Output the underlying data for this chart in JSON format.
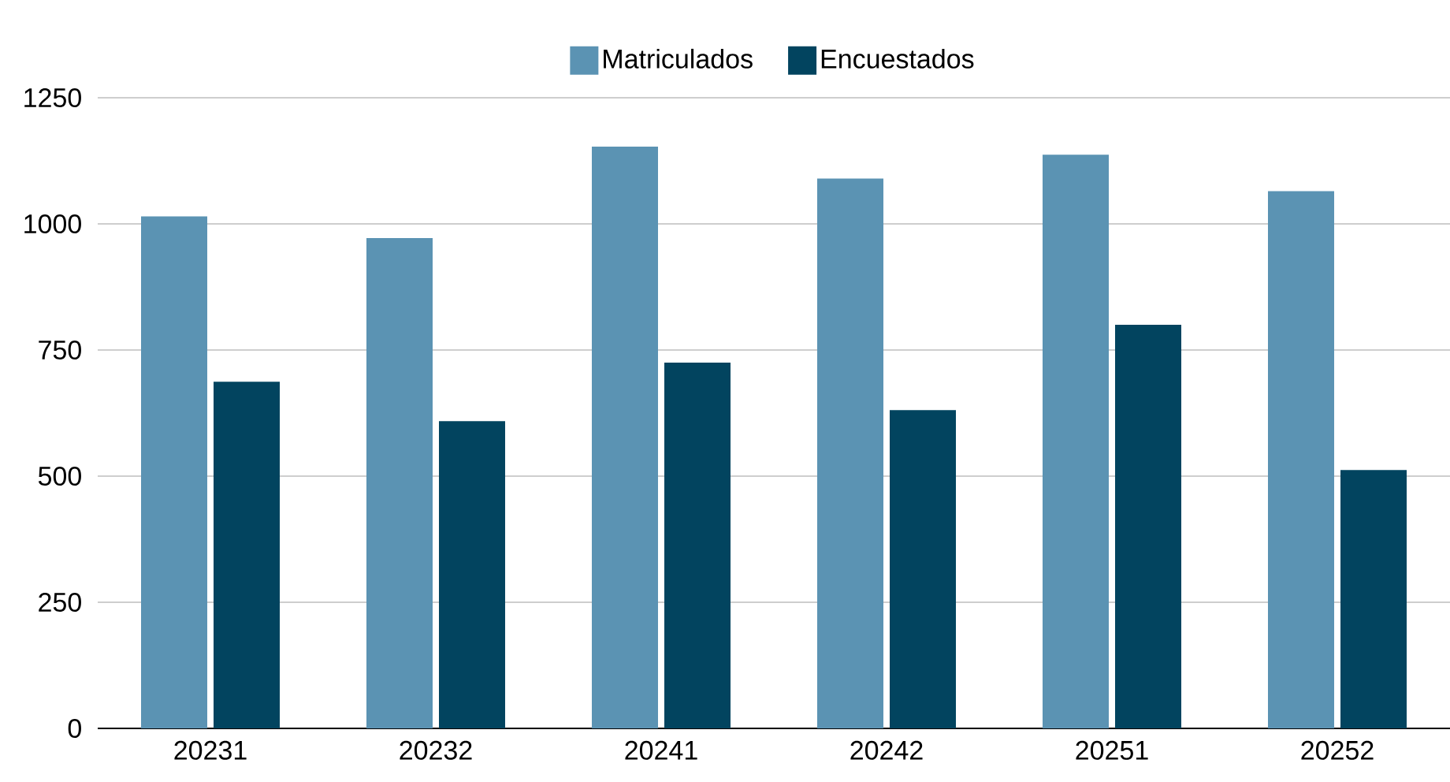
{
  "chart_data": {
    "type": "bar",
    "categories": [
      "20231",
      "20232",
      "20241",
      "20242",
      "20251",
      "20252"
    ],
    "series": [
      {
        "name": "Matriculados",
        "color": "#5b93b3",
        "values": [
          1015,
          972,
          1153,
          1090,
          1137,
          1065
        ]
      },
      {
        "name": "Encuestados",
        "color": "#02445f",
        "values": [
          687,
          609,
          725,
          631,
          800,
          512
        ]
      }
    ],
    "ylim": [
      0,
      1250
    ],
    "yticks": [
      0,
      250,
      500,
      750,
      1000,
      1250
    ],
    "grid": "y",
    "legend": "top"
  }
}
